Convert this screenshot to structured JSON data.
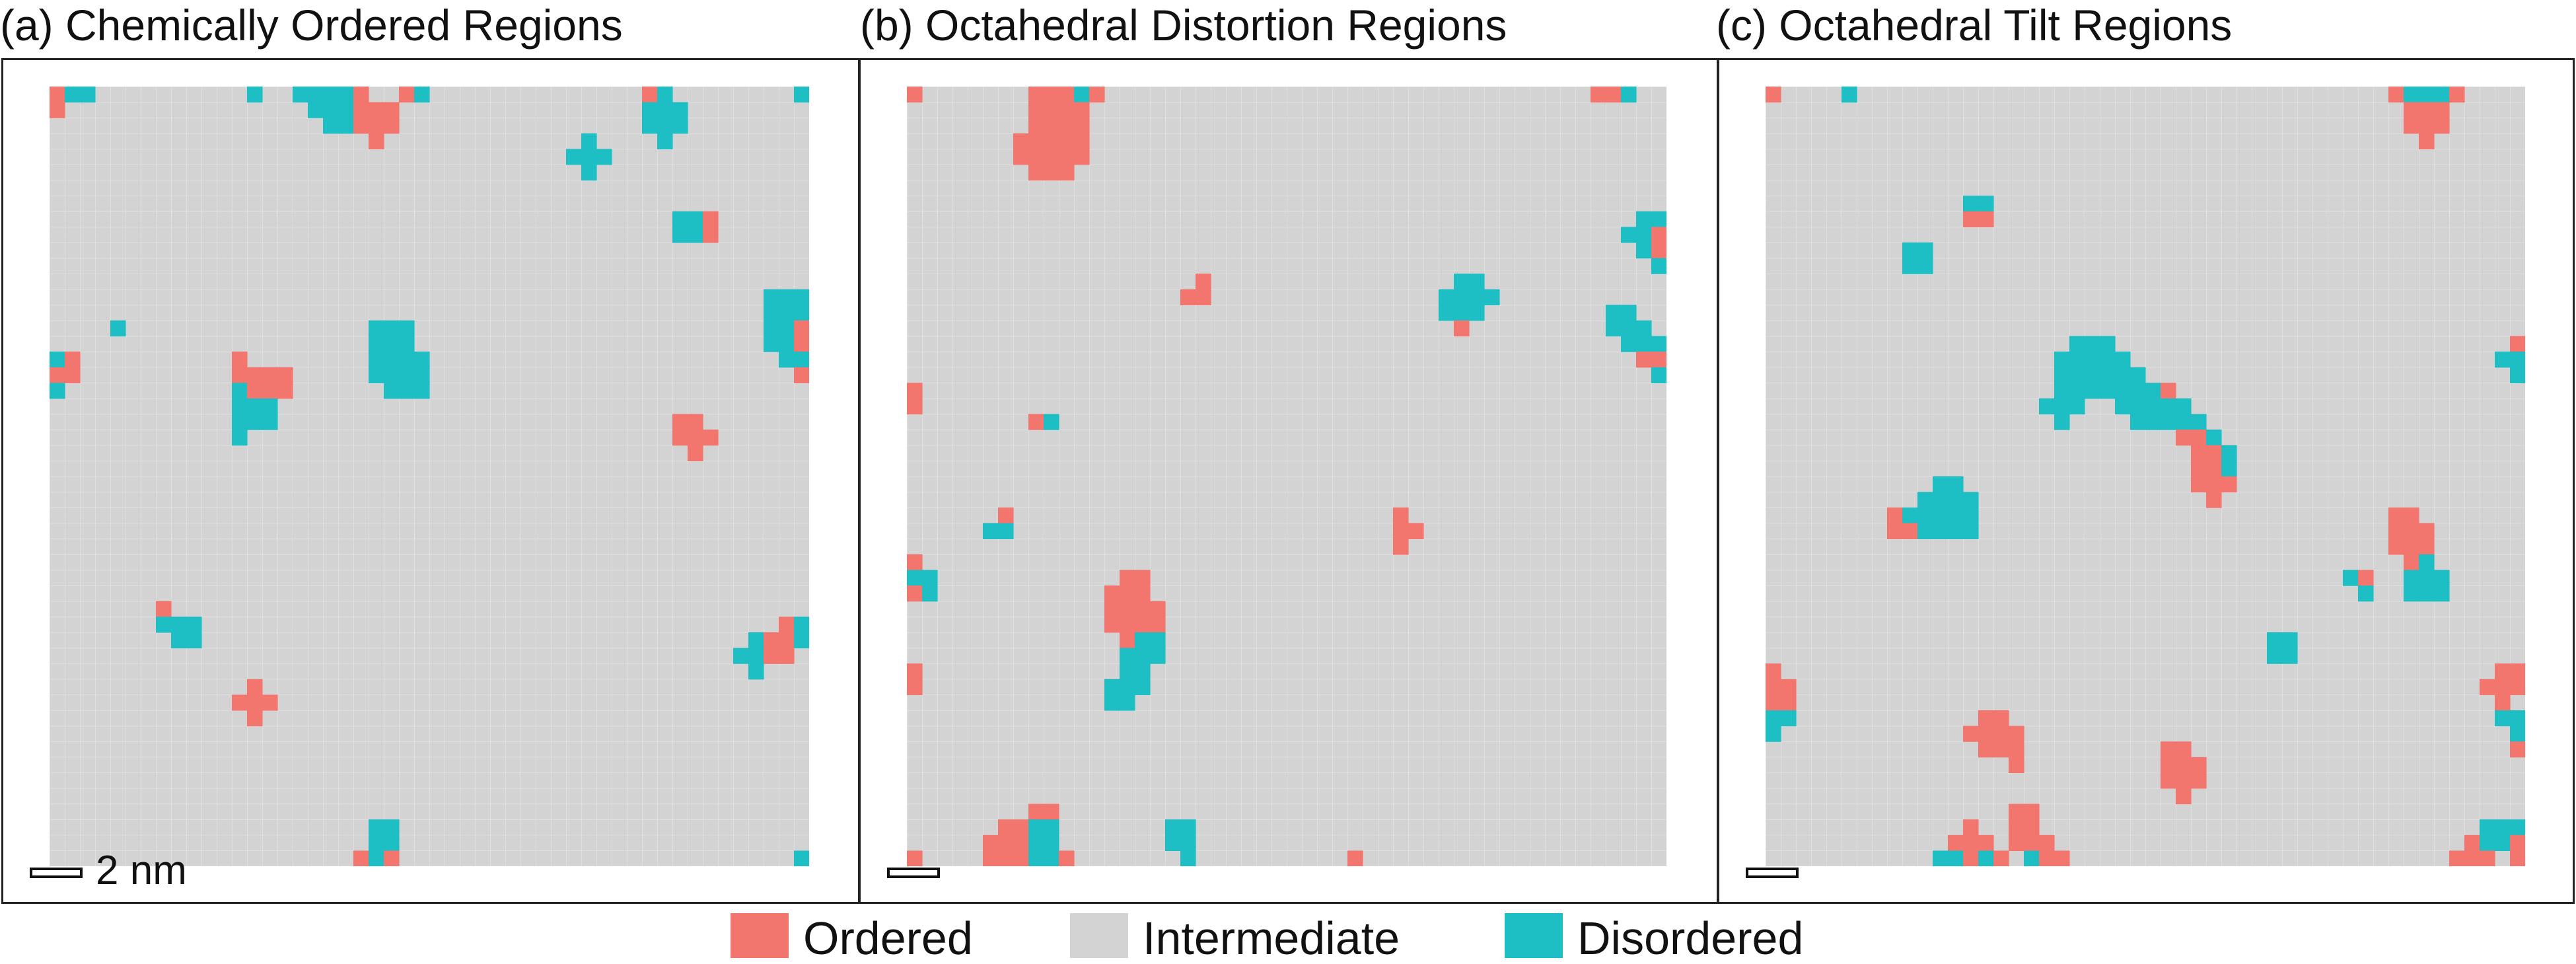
{
  "colors": {
    "ordered": "#f2766d",
    "intermediate": "#d3d3d3",
    "disordered": "#1ebfc4"
  },
  "panels": [
    {
      "id": "a",
      "title": "(a) Chemically Ordered Regions",
      "scale_label": "2 nm",
      "seed": 11
    },
    {
      "id": "b",
      "title": "(b) Octahedral Distortion Regions",
      "scale_label": "",
      "seed": 23
    },
    {
      "id": "c",
      "title": "(c) Octahedral Tilt Regions",
      "scale_label": "",
      "seed": 37
    }
  ],
  "legend": [
    {
      "label": "Ordered",
      "color": "#f2766d"
    },
    {
      "label": "Intermediate",
      "color": "#d3d3d3"
    },
    {
      "label": "Disordered",
      "color": "#1ebfc4"
    }
  ]
}
